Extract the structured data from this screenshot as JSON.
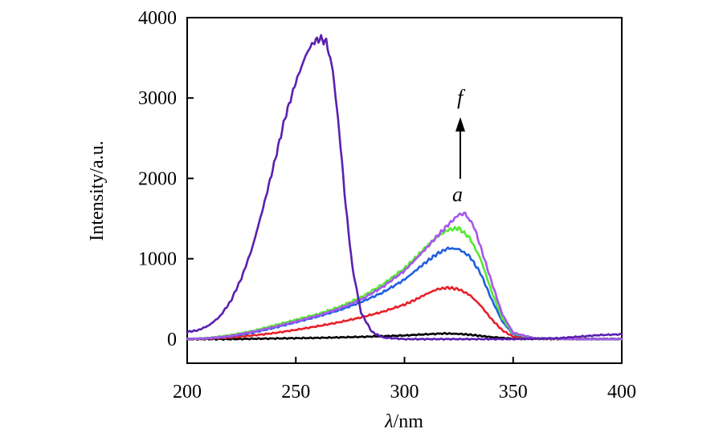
{
  "chart_data": {
    "type": "line",
    "title": "",
    "xlabel_italic": "λ",
    "xlabel_rest": "/nm",
    "ylabel": "Intensity/a.u.",
    "xlim": [
      200,
      400
    ],
    "ylim": [
      -300,
      4000
    ],
    "xticks": [
      200,
      250,
      300,
      350,
      400
    ],
    "yticks": [
      0,
      1000,
      2000,
      3000,
      4000
    ],
    "grid": false,
    "annotations": {
      "start_label": "a",
      "end_label": "f",
      "arrow": "upward arrow from a to f near x = 322"
    },
    "series": [
      {
        "color": "#000000",
        "x": [
          200,
          220,
          240,
          260,
          280,
          300,
          310,
          318,
          325,
          330,
          335,
          340,
          350,
          370,
          400
        ],
        "y": [
          0,
          0,
          8,
          15,
          28,
          45,
          60,
          70,
          65,
          55,
          40,
          25,
          5,
          2,
          0
        ]
      },
      {
        "color": "#e8202a",
        "x": [
          200,
          210,
          220,
          230,
          240,
          250,
          260,
          270,
          280,
          290,
          300,
          305,
          310,
          315,
          320,
          325,
          330,
          335,
          340,
          345,
          350,
          360,
          380,
          400
        ],
        "y": [
          0,
          5,
          20,
          45,
          75,
          115,
          160,
          210,
          270,
          340,
          430,
          490,
          560,
          620,
          640,
          620,
          550,
          420,
          250,
          110,
          30,
          5,
          0,
          0
        ]
      },
      {
        "color": "#1f5fe0",
        "x": [
          200,
          210,
          220,
          230,
          240,
          250,
          260,
          270,
          280,
          290,
          300,
          305,
          310,
          315,
          320,
          325,
          330,
          335,
          340,
          345,
          350,
          360,
          380,
          400
        ],
        "y": [
          0,
          10,
          35,
          80,
          140,
          210,
          280,
          360,
          460,
          580,
          740,
          850,
          960,
          1060,
          1130,
          1120,
          1030,
          820,
          500,
          220,
          60,
          10,
          0,
          0
        ]
      },
      {
        "color": "#55e830",
        "x": [
          200,
          210,
          220,
          230,
          240,
          250,
          260,
          270,
          280,
          290,
          300,
          305,
          310,
          315,
          320,
          325,
          330,
          335,
          340,
          345,
          350,
          360,
          380,
          400
        ],
        "y": [
          0,
          15,
          50,
          100,
          170,
          240,
          310,
          400,
          520,
          680,
          880,
          1010,
          1150,
          1270,
          1360,
          1380,
          1260,
          1000,
          600,
          260,
          70,
          10,
          0,
          0
        ]
      },
      {
        "color": "#a855f0",
        "x": [
          200,
          210,
          220,
          230,
          240,
          250,
          260,
          270,
          280,
          290,
          300,
          305,
          310,
          315,
          320,
          325,
          328,
          332,
          335,
          340,
          345,
          350,
          360,
          380,
          400
        ],
        "y": [
          0,
          12,
          40,
          90,
          150,
          220,
          290,
          380,
          490,
          650,
          850,
          990,
          1130,
          1280,
          1420,
          1550,
          1560,
          1400,
          1150,
          720,
          310,
          80,
          10,
          0,
          0
        ]
      },
      {
        "color": "#5a20b0",
        "x": [
          200,
          205,
          210,
          215,
          220,
          225,
          230,
          235,
          240,
          245,
          250,
          255,
          258,
          261,
          264,
          267,
          270,
          273,
          276,
          280,
          285,
          290,
          300,
          320,
          350,
          370,
          390,
          400
        ],
        "y": [
          90,
          110,
          170,
          280,
          470,
          760,
          1140,
          1640,
          2180,
          2750,
          3200,
          3560,
          3690,
          3740,
          3700,
          3350,
          2580,
          1650,
          900,
          330,
          90,
          20,
          0,
          0,
          0,
          10,
          50,
          60
        ]
      }
    ]
  }
}
